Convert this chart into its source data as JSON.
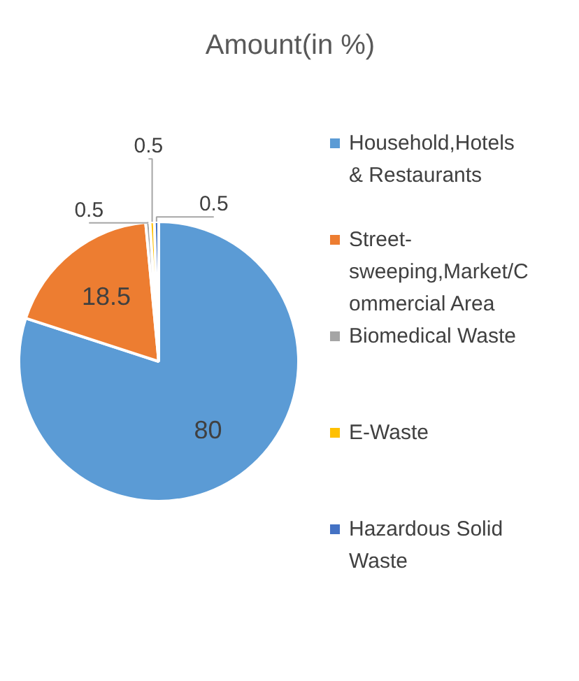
{
  "chart_data": {
    "type": "pie",
    "title": "Amount(in %)",
    "categories": [
      "Household,Hotels & Restaurants",
      "Street-sweeping,Market/Commercial Area",
      "Biomedical Waste",
      "E-Waste",
      "Hazardous Solid Waste"
    ],
    "values": [
      80,
      18.5,
      0.5,
      0.5,
      0.5
    ],
    "colors": [
      "#5b9bd5",
      "#ed7d31",
      "#a5a5a5",
      "#ffc000",
      "#4472c4"
    ],
    "data_labels": true,
    "legend": "right"
  }
}
